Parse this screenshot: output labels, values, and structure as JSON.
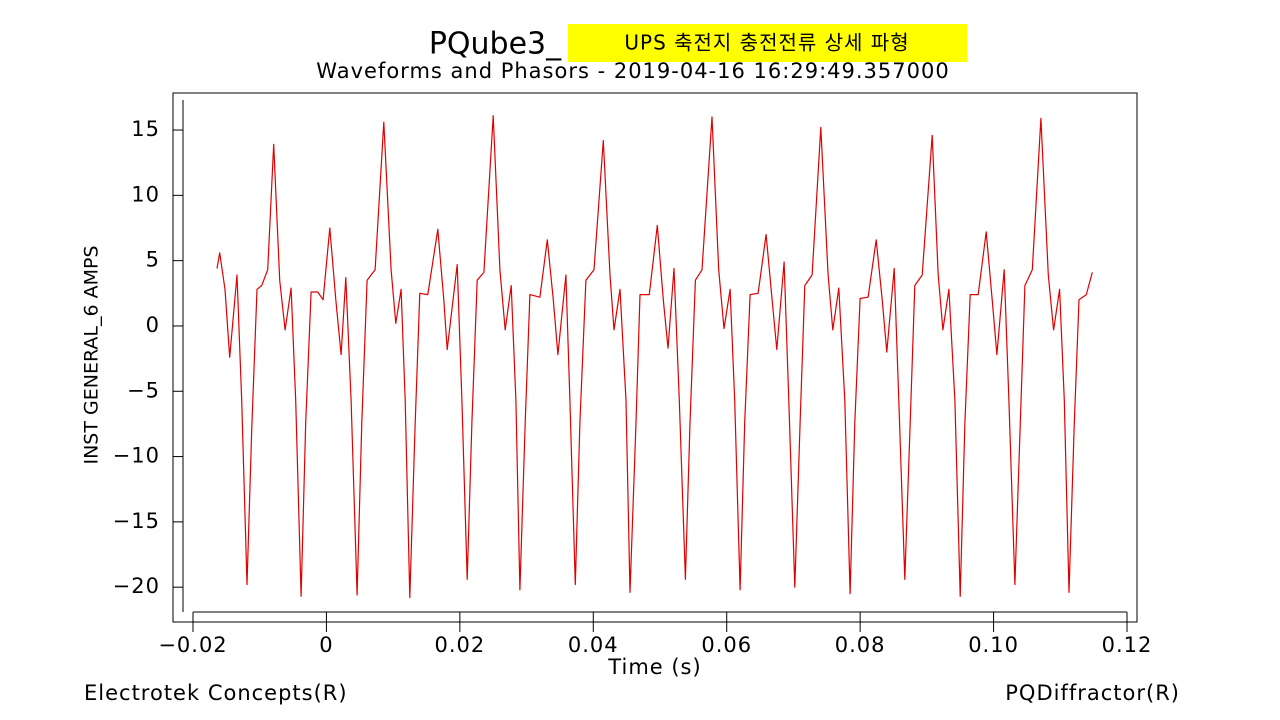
{
  "chart_data": {
    "type": "line",
    "title": "PQube3_",
    "annotation": "UPS 축전지 충전전류 상세 파형",
    "subtitle": "Waveforms and Phasors - 2019-04-16 16:29:49.357000",
    "xlabel": "Time (s)",
    "ylabel": "INST GENERAL_6 AMPS",
    "footer_left": "Electrotek Concepts(R)",
    "footer_right": "PQDiffractor(R)",
    "xlim": [
      -0.02,
      0.12
    ],
    "xticks": [
      {
        "value": -0.02,
        "label": "−0.02"
      },
      0,
      0.02,
      0.04,
      0.06,
      0.08,
      {
        "value": 0.1,
        "label": "0.10"
      },
      0.12
    ],
    "ylim": [
      -21.9,
      17.3
    ],
    "yticks": [
      {
        "value": -20,
        "label": "−20"
      },
      {
        "value": -15,
        "label": "−15"
      },
      {
        "value": -10,
        "label": "−10"
      },
      {
        "value": -5,
        "label": "−5"
      },
      0,
      5,
      10,
      15
    ],
    "series": [
      {
        "color": "#e00000",
        "x": [
          -0.0164,
          -0.016,
          -0.0152,
          -0.0145,
          -0.0134,
          -0.0127,
          -0.0119,
          -0.0112,
          -0.0104,
          -0.0097,
          -0.0088,
          -0.0079,
          -0.007,
          -0.0062,
          -0.0053,
          -0.0046,
          -0.0038,
          -0.0031,
          -0.0023,
          -0.0013,
          -0.0005,
          0.0005,
          0.0014,
          0.0022,
          0.0029,
          0.0037,
          0.0046,
          0.0053,
          0.0061,
          0.0073,
          0.0086,
          0.0097,
          0.0104,
          0.0112,
          0.0118,
          0.0125,
          0.0133,
          0.014,
          0.0152,
          0.0167,
          0.0176,
          0.0181,
          0.0196,
          0.0203,
          0.0211,
          0.0218,
          0.0226,
          0.0236,
          0.025,
          0.026,
          0.0268,
          0.0277,
          0.0284,
          0.029,
          0.0298,
          0.0305,
          0.032,
          0.0331,
          0.034,
          0.0347,
          0.0359,
          0.0365,
          0.0373,
          0.038,
          0.0389,
          0.0401,
          0.0415,
          0.0425,
          0.0431,
          0.044,
          0.0449,
          0.0455,
          0.0464,
          0.047,
          0.0484,
          0.0496,
          0.0505,
          0.0512,
          0.0521,
          0.0529,
          0.0538,
          0.0545,
          0.0553,
          0.0563,
          0.0578,
          0.0588,
          0.0596,
          0.0605,
          0.0612,
          0.062,
          0.0627,
          0.0635,
          0.0647,
          0.0659,
          0.0668,
          0.0675,
          0.0686,
          0.0693,
          0.0702,
          0.071,
          0.0717,
          0.0728,
          0.0741,
          0.0752,
          0.0759,
          0.0768,
          0.0777,
          0.0785,
          0.0792,
          0.08,
          0.0812,
          0.0824,
          0.0833,
          0.084,
          0.0851,
          0.0858,
          0.0867,
          0.0875,
          0.0882,
          0.0893,
          0.0908,
          0.0917,
          0.0924,
          0.0933,
          0.0942,
          0.095,
          0.0957,
          0.0965,
          0.0977,
          0.0989,
          0.0998,
          0.1005,
          0.1016,
          0.1023,
          0.1032,
          0.104,
          0.1047,
          0.1058,
          0.1071,
          0.1082,
          0.109,
          0.1099,
          0.1106,
          0.1113,
          0.1121,
          0.1128,
          0.1139,
          0.1148
        ],
        "values": [
          4.4,
          5.6,
          2.8,
          -2.4,
          3.9,
          -5.7,
          -19.8,
          -8.0,
          2.8,
          3.1,
          4.3,
          13.9,
          3.5,
          -0.3,
          2.9,
          -5.7,
          -20.7,
          -7.4,
          2.6,
          2.6,
          2.0,
          7.5,
          2.0,
          -2.2,
          3.7,
          -5.7,
          -20.6,
          -7.4,
          3.5,
          4.3,
          15.6,
          4.3,
          0.2,
          2.8,
          -5.7,
          -20.8,
          -7.4,
          2.5,
          2.4,
          7.4,
          2.0,
          -1.8,
          4.7,
          -5.7,
          -19.4,
          -7.4,
          3.5,
          4.1,
          16.1,
          4.3,
          -0.3,
          3.1,
          -5.7,
          -20.2,
          -7.4,
          2.4,
          2.2,
          6.6,
          2.0,
          -2.2,
          3.9,
          -5.7,
          -19.8,
          -7.4,
          3.5,
          4.3,
          14.2,
          3.9,
          -0.3,
          2.8,
          -5.7,
          -20.4,
          -7.4,
          2.4,
          2.4,
          7.7,
          2.0,
          -1.7,
          4.4,
          -5.7,
          -19.4,
          -7.4,
          3.5,
          4.3,
          16.0,
          4.3,
          -0.2,
          2.8,
          -5.7,
          -20.2,
          -7.4,
          2.4,
          2.5,
          7.0,
          2.0,
          -1.8,
          4.9,
          -5.7,
          -20.0,
          -7.4,
          3.1,
          3.9,
          15.2,
          3.9,
          -0.3,
          2.9,
          -5.7,
          -20.5,
          -7.4,
          2.1,
          2.2,
          6.6,
          2.0,
          -2.0,
          4.4,
          -5.7,
          -19.4,
          -7.4,
          3.1,
          3.9,
          14.6,
          3.9,
          -0.3,
          2.8,
          -5.7,
          -20.7,
          -7.4,
          2.4,
          2.4,
          7.2,
          2.0,
          -2.2,
          4.3,
          -5.7,
          -19.8,
          -7.4,
          3.1,
          4.3,
          15.9,
          3.9,
          -0.3,
          2.8,
          -5.7,
          -20.4,
          -7.4,
          2.0,
          2.4,
          4.1
        ]
      }
    ]
  }
}
